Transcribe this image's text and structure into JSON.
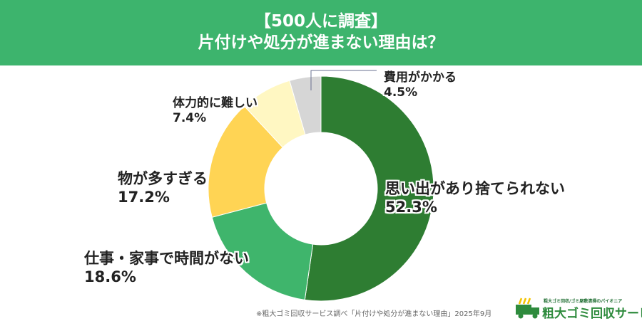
{
  "header": {
    "line1": "【500人に調査】",
    "line2": "片付けや処分が進まない理由は？"
  },
  "chart_data": {
    "type": "pie",
    "donut": true,
    "start": "top",
    "direction": "clockwise",
    "slices": [
      {
        "label": "思い出があり捨てられない",
        "value": 52.3,
        "display": "52.3%",
        "color": "#2e7d32"
      },
      {
        "label": "仕事・家事で時間がない",
        "value": 18.6,
        "display": "18.6%",
        "color": "#3fb56c"
      },
      {
        "label": "物が多すぎる",
        "value": 17.2,
        "display": "17.2%",
        "color": "#ffd454"
      },
      {
        "label": "体力的に難しい",
        "value": 7.4,
        "display": "7.4%",
        "color": "#fff7c2"
      },
      {
        "label": "費用がかかる",
        "value": 4.5,
        "display": "4.5%",
        "color": "#d6d6d6"
      }
    ]
  },
  "source": "※粗大ゴミ回収サービス調べ「片付けや処分が進まない理由」2025年9月",
  "logo": {
    "tagline": "粗大ゴミ回収/ゴミ屋敷清掃のパイオニア",
    "name": "粗大ゴミ回収サービス",
    "color": "#2e8b3d"
  }
}
